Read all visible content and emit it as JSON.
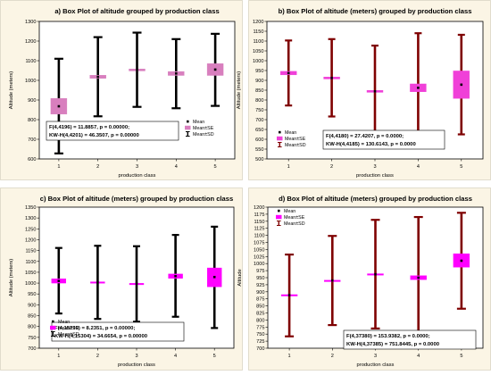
{
  "chart_data": [
    {
      "type": "boxplot",
      "title": "a) Box Plot of altitude  grouped by  production class",
      "xlabel": "production class",
      "ylabel": "Altitude (meters)",
      "ylim": [
        600,
        1300
      ],
      "yticks": [
        600,
        700,
        800,
        900,
        1000,
        1100,
        1200,
        1300
      ],
      "categories": [
        "1",
        "2",
        "3",
        "4",
        "5"
      ],
      "series": [
        {
          "name": "Mean",
          "values": [
            868,
            1018,
            1053,
            1035,
            1055
          ]
        },
        {
          "name": "Mean±SE",
          "values": [
            [
              828,
              908
            ],
            [
              1010,
              1026
            ],
            [
              1048,
              1058
            ],
            [
              1025,
              1045
            ],
            [
              1025,
              1085
            ]
          ]
        },
        {
          "name": "Mean±SD",
          "values": [
            [
              628,
              1110
            ],
            [
              817,
              1220
            ],
            [
              865,
              1243
            ],
            [
              858,
              1210
            ],
            [
              870,
              1237
            ]
          ]
        }
      ],
      "colors": {
        "background": "#fbf5e5",
        "plot_bg": "#ffffff",
        "box": "#d87fbe",
        "whisker": "#000000"
      },
      "legend": [
        "Mean",
        "Mean±SE",
        "Mean±SD"
      ],
      "legend_position": "bottom-right",
      "stats": [
        "F(4,4196) = 11.8857, p = 0.00000;",
        "KW-H(4,4201) = 46.3507, p = 0.00000"
      ],
      "grid": false
    },
    {
      "type": "boxplot",
      "title": "b) Box Plot of altitude (meters)  grouped by  production class",
      "xlabel": "production class",
      "ylabel": "Altitude (meters)",
      "ylim": [
        500,
        1200
      ],
      "yticks": [
        500,
        550,
        600,
        650,
        700,
        750,
        800,
        850,
        900,
        950,
        1000,
        1050,
        1100,
        1150,
        1200
      ],
      "categories": [
        "1",
        "2",
        "3",
        "4",
        "5"
      ],
      "series": [
        {
          "name": "Mean",
          "values": [
            937,
            912,
            844,
            862,
            878
          ]
        },
        {
          "name": "Mean±SE",
          "values": [
            [
              928,
              946
            ],
            [
              907,
              917
            ],
            [
              839,
              849
            ],
            [
              842,
              882
            ],
            [
              808,
              948
            ]
          ]
        },
        {
          "name": "Mean±SD",
          "values": [
            [
              772,
              1103
            ],
            [
              716,
              1110
            ],
            [
              610,
              1077
            ],
            [
              585,
              1140
            ],
            [
              625,
              1132
            ]
          ]
        }
      ],
      "colors": {
        "background": "#fbf5e5",
        "plot_bg": "#ffffff",
        "box": "#f040d8",
        "whisker": "#7f0000"
      },
      "legend": [
        "Mean",
        "Mean±SE",
        "Mean±SD"
      ],
      "legend_position": "bottom-left",
      "stats": [
        "F(4,4180) = 27.4207, p = 0.0000;",
        "KW-H(4,4185) = 130.6143, p = 0.0000"
      ],
      "grid": false
    },
    {
      "type": "boxplot",
      "title": "c) Box Plot of altitude (meters) grouped by production class",
      "xlabel": "production class",
      "ylabel": "Altitude (meters)",
      "ylim": [
        700,
        1350
      ],
      "yticks": [
        700,
        750,
        800,
        850,
        900,
        950,
        1000,
        1050,
        1100,
        1150,
        1200,
        1250,
        1300,
        1350
      ],
      "categories": [
        "1",
        "2",
        "3",
        "4",
        "5"
      ],
      "series": [
        {
          "name": "Mean",
          "values": [
            1010,
            1003,
            997,
            1032,
            1028
          ]
        },
        {
          "name": "Mean±SE",
          "values": [
            [
              1000,
              1020
            ],
            [
              1000,
              1006
            ],
            [
              995,
              999
            ],
            [
              1022,
              1042
            ],
            [
              983,
              1070
            ]
          ]
        },
        {
          "name": "Mean±SD",
          "values": [
            [
              860,
              1162
            ],
            [
              835,
              1172
            ],
            [
              822,
              1170
            ],
            [
              845,
              1222
            ],
            [
              793,
              1260
            ]
          ]
        }
      ],
      "colors": {
        "background": "#fbf5e5",
        "plot_bg": "#ffffff",
        "box": "#ff00ff",
        "whisker": "#000000"
      },
      "legend": [
        "Mean",
        "Mean±SE",
        "Mean±SD"
      ],
      "legend_position": "bottom-left",
      "stats": [
        "F(4,15299) = 8.2351, p = 0.00000;",
        "KW-H(4,15304) = 34.6654, p = 0.00000"
      ],
      "grid": false
    },
    {
      "type": "boxplot",
      "title": "d) Box Plot of altitude (meters) grouped by production class",
      "xlabel": "production class",
      "ylabel": "Altitude",
      "ylim": [
        700,
        1200
      ],
      "yticks": [
        700,
        725,
        750,
        775,
        800,
        825,
        850,
        875,
        900,
        925,
        950,
        975,
        1000,
        1025,
        1050,
        1075,
        1100,
        1125,
        1150,
        1175,
        1200
      ],
      "categories": [
        "1",
        "2",
        "3",
        "4",
        "5"
      ],
      "series": [
        {
          "name": "Mean",
          "values": [
            888,
            940,
            962,
            950,
            1010
          ]
        },
        {
          "name": "Mean±SE",
          "values": [
            [
              886,
              890
            ],
            [
              939,
              941
            ],
            [
              960,
              964
            ],
            [
              943,
              957
            ],
            [
              987,
              1035
            ]
          ]
        },
        {
          "name": "Mean±SD",
          "values": [
            [
              742,
              1032
            ],
            [
              782,
              1098
            ],
            [
              770,
              1155
            ],
            [
              737,
              1165
            ],
            [
              840,
              1180
            ]
          ]
        }
      ],
      "colors": {
        "background": "#fbf5e5",
        "plot_bg": "#ffffff",
        "box": "#ff00ff",
        "whisker": "#7f0000"
      },
      "legend": [
        "Mean",
        "Mean±SE",
        "Mean±SD"
      ],
      "legend_position": "top-left",
      "stats": [
        "F(4,37380) = 153.9382, p = 0.0000;",
        "KW-H(4,37385) = 751.8445, p = 0.0000"
      ],
      "grid": false
    }
  ]
}
